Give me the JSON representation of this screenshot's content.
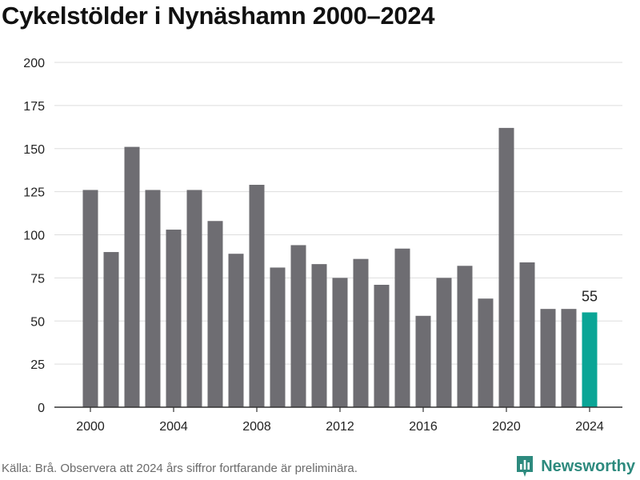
{
  "title": "Cykelstölder i Nynäshamn 2000–2024",
  "source": "Källa: Brå. Observera att 2024 års siffror fortfarande är preliminära.",
  "brand": {
    "name": "Newsworthy",
    "logo_icon": "bar-chart-logo-icon",
    "color": "#2d8a7e"
  },
  "colors": {
    "bar": "#6e6d72",
    "highlight": "#0aa596",
    "grid": "#dddddd",
    "axis": "#333333"
  },
  "chart_data": {
    "type": "bar",
    "title": "Cykelstölder i Nynäshamn 2000–2024",
    "xlabel": "",
    "ylabel": "",
    "categories": [
      "2000",
      "2001",
      "2002",
      "2003",
      "2004",
      "2005",
      "2006",
      "2007",
      "2008",
      "2009",
      "2010",
      "2011",
      "2012",
      "2013",
      "2014",
      "2015",
      "2016",
      "2017",
      "2018",
      "2019",
      "2020",
      "2021",
      "2022",
      "2023",
      "2024"
    ],
    "values": [
      126,
      90,
      151,
      126,
      103,
      126,
      108,
      89,
      129,
      81,
      94,
      83,
      75,
      86,
      71,
      92,
      53,
      75,
      82,
      63,
      162,
      84,
      57,
      57,
      55
    ],
    "ylim": [
      0,
      200
    ],
    "yticks": [
      0,
      25,
      50,
      75,
      100,
      125,
      150,
      175,
      200
    ],
    "xticks": [
      "2000",
      "2004",
      "2008",
      "2012",
      "2016",
      "2020",
      "2024"
    ],
    "highlight": {
      "category": "2024",
      "label": "55"
    },
    "grid": true,
    "legend": "none"
  }
}
